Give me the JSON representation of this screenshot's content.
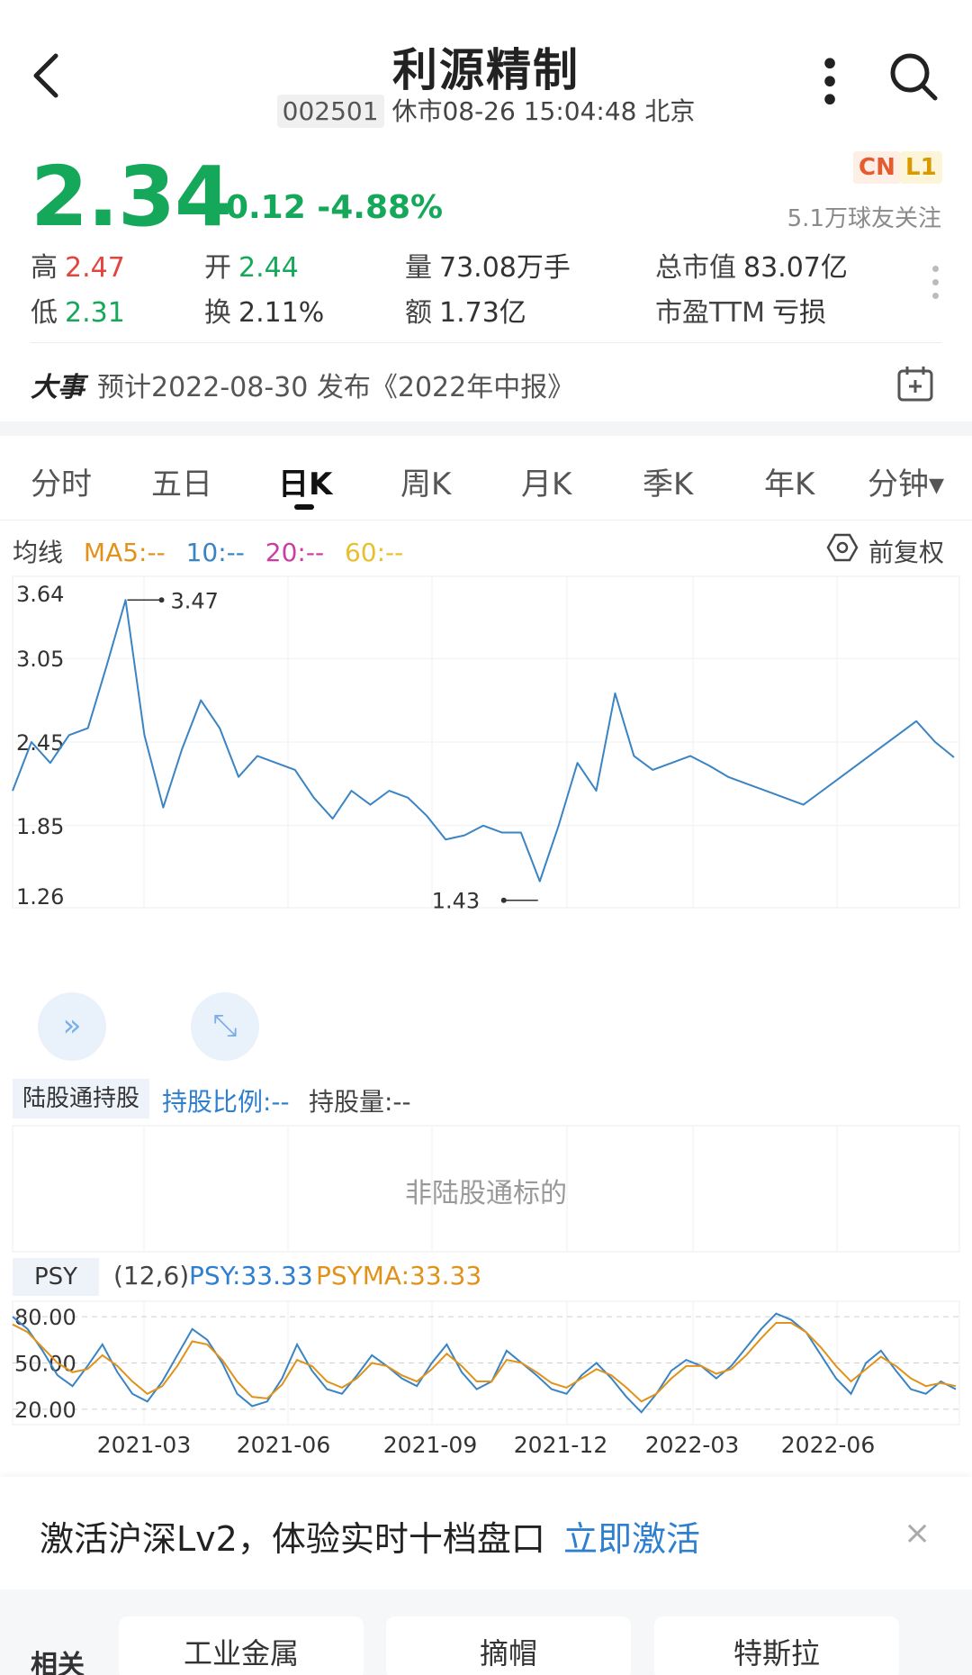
{
  "header": {
    "title": "利源精制",
    "code": "002501",
    "status": "休市08-26 15:04:48 北京",
    "more_icon": "more-icon",
    "search_icon": "search-icon"
  },
  "quote": {
    "price": "2.34",
    "change": "-0.12 -4.88%",
    "badge_cn": "CN",
    "badge_l1": "L1",
    "followers": "5.1万球友关注",
    "colors": {
      "up": "#e5433d",
      "down": "#16a85a"
    }
  },
  "stats": {
    "high_label": "高",
    "high": "2.47",
    "low_label": "低",
    "low": "2.31",
    "open_label": "开",
    "open": "2.44",
    "turnover_label": "换",
    "turnover": "2.11%",
    "volume_label": "量",
    "volume": "73.08万手",
    "amount_label": "额",
    "amount": "1.73亿",
    "mcap_label": "总市值",
    "mcap": "83.07亿",
    "pe_label": "市盈TTM",
    "pe": "亏损"
  },
  "event": {
    "tag": "大事",
    "text": "预计2022-08-30 发布《2022年中报》"
  },
  "tabs": [
    {
      "label": "分时"
    },
    {
      "label": "五日"
    },
    {
      "label": "日K"
    },
    {
      "label": "周K"
    },
    {
      "label": "月K"
    },
    {
      "label": "季K"
    },
    {
      "label": "年K"
    },
    {
      "label": "分钟▾"
    }
  ],
  "ma": {
    "label": "均线",
    "ma5": "MA5:--",
    "ma10": "10:--",
    "ma20": "20:--",
    "ma60": "60:--",
    "adjust": "前复权"
  },
  "chart_data": {
    "type": "line",
    "y_ticks": [
      "3.64",
      "3.05",
      "2.45",
      "1.85",
      "1.26"
    ],
    "ylim": [
      1.26,
      3.64
    ],
    "x_ticks": [
      "2021-03",
      "2021-06",
      "2021-09",
      "2021-12",
      "2022-03",
      "2022-06"
    ],
    "max_label": "3.47",
    "min_label": "1.43",
    "series_color": "#3a84c4",
    "x": [
      0,
      2,
      4,
      6,
      8,
      10,
      12,
      14,
      16,
      18,
      20,
      22,
      24,
      26,
      28,
      30,
      32,
      34,
      36,
      38,
      40,
      42,
      44,
      46,
      48,
      50,
      52,
      54,
      56,
      58,
      60,
      62,
      64,
      66,
      68,
      70,
      72,
      74,
      76,
      78,
      80,
      82,
      84,
      86,
      88,
      90,
      92,
      94,
      96,
      98,
      100
    ],
    "values": [
      2.1,
      2.45,
      2.3,
      2.5,
      2.55,
      3.0,
      3.47,
      2.5,
      1.98,
      2.4,
      2.75,
      2.55,
      2.2,
      2.35,
      2.3,
      2.25,
      2.05,
      1.9,
      2.1,
      2.0,
      2.1,
      2.05,
      1.92,
      1.75,
      1.78,
      1.85,
      1.8,
      1.8,
      1.45,
      1.85,
      2.3,
      2.1,
      2.8,
      2.35,
      2.25,
      2.3,
      2.35,
      2.28,
      2.2,
      2.15,
      2.1,
      2.05,
      2.0,
      2.1,
      2.2,
      2.3,
      2.4,
      2.5,
      2.6,
      2.45,
      2.34
    ]
  },
  "hk": {
    "tag": "陆股通持股",
    "ratio": "持股比例:--",
    "qty": "持股量:--",
    "note": "非陆股通标的"
  },
  "psy": {
    "tag": "PSY",
    "params": "(12,6)",
    "psy": "PSY:33.33",
    "psyma": "PSYMA:33.33",
    "y_ticks": [
      "80.00",
      "50.00",
      "20.00"
    ],
    "x_ticks": [
      "2021-03",
      "2021-06",
      "2021-09",
      "2021-12",
      "2022-03",
      "2022-06"
    ],
    "psy_color": "#3a84c4",
    "psyma_color": "#e0921a",
    "psy_values": [
      80,
      72,
      58,
      42,
      35,
      48,
      62,
      44,
      30,
      25,
      38,
      55,
      72,
      65,
      50,
      30,
      22,
      25,
      40,
      62,
      45,
      33,
      30,
      42,
      55,
      48,
      40,
      35,
      50,
      62,
      44,
      33,
      38,
      58,
      50,
      42,
      33,
      30,
      42,
      50,
      40,
      28,
      18,
      30,
      45,
      52,
      48,
      40,
      48,
      60,
      72,
      82,
      78,
      70,
      55,
      40,
      30,
      50,
      58,
      45,
      33,
      30,
      38,
      33
    ],
    "psyma_values": [
      75,
      70,
      60,
      50,
      44,
      46,
      55,
      48,
      38,
      30,
      35,
      48,
      64,
      62,
      52,
      38,
      28,
      27,
      36,
      52,
      48,
      38,
      34,
      40,
      50,
      48,
      42,
      38,
      46,
      56,
      48,
      38,
      38,
      52,
      50,
      44,
      37,
      34,
      40,
      46,
      42,
      34,
      25,
      30,
      40,
      48,
      48,
      43,
      46,
      55,
      66,
      76,
      76,
      70,
      60,
      48,
      38,
      46,
      54,
      48,
      40,
      35,
      37,
      35
    ]
  },
  "promo": {
    "text": "激活沪深Lv2，体验实时十档盘口",
    "link": "立即激活",
    "close": "×"
  },
  "related": {
    "label": "相关",
    "chips": [
      "工业金属",
      "摘帽",
      "特斯拉"
    ]
  }
}
